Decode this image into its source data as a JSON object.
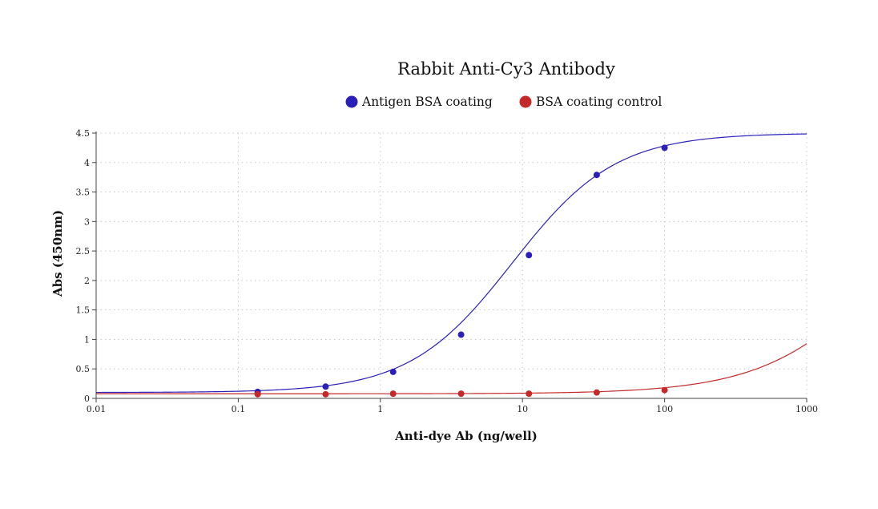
{
  "chart_data": {
    "type": "scatter",
    "title": "Rabbit Anti-Cy3 Antibody",
    "xlabel": "Anti-dye Ab (ng/well)",
    "ylabel": "Abs (450nm)",
    "x_scale": "log",
    "xlim": [
      0.01,
      1000
    ],
    "ylim": [
      0,
      4.5
    ],
    "x_ticks": [
      "0.01",
      "0.1",
      "1",
      "10",
      "100",
      "1000"
    ],
    "y_ticks": [
      "0",
      "0.5",
      "1",
      "1.5",
      "2",
      "2.5",
      "3",
      "3.5",
      "4",
      "4.5"
    ],
    "grid": true,
    "legend_position": "top-center",
    "series": [
      {
        "name": "Antigen BSA coating",
        "color": "#2a1fb8",
        "x": [
          0.137,
          0.412,
          1.23,
          3.7,
          11.1,
          33.3,
          100
        ],
        "y": [
          0.11,
          0.2,
          0.45,
          1.08,
          2.43,
          3.79,
          4.25
        ],
        "fit_curve": {
          "bottom": 0.1,
          "top": 4.5,
          "ec50": 8.5,
          "hill": 1.2
        }
      },
      {
        "name": "BSA coating control",
        "color": "#c42a2a",
        "x": [
          0.137,
          0.412,
          1.23,
          3.7,
          11.1,
          33.3,
          100
        ],
        "y": [
          0.07,
          0.07,
          0.08,
          0.08,
          0.08,
          0.1,
          0.14
        ],
        "fit_curve": {
          "bottom": 0.078,
          "top": 4.5,
          "ec50": 4200,
          "hill": 1.0
        }
      }
    ]
  }
}
